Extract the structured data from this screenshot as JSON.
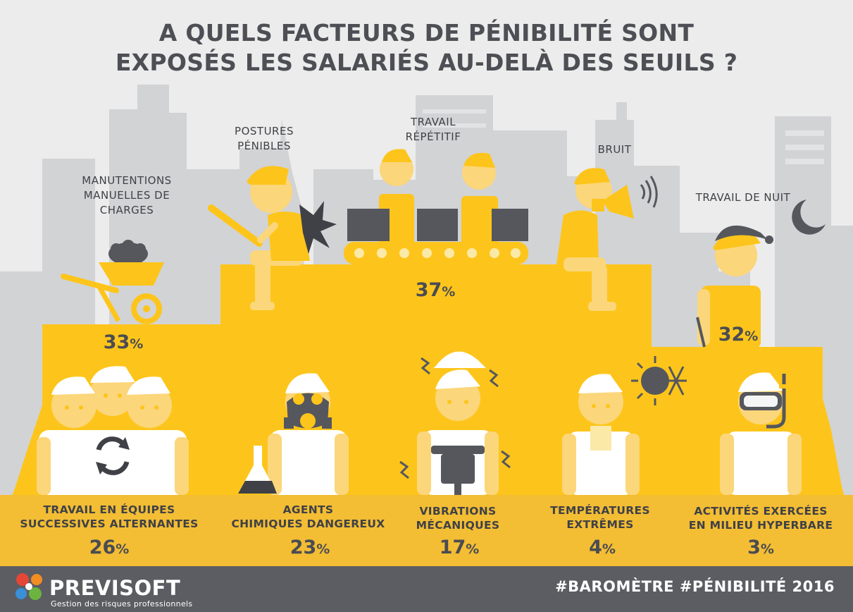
{
  "title_lines": [
    "A QUELS FACTEURS DE PÉNIBILITÉ SONT",
    "EXPOSÉS LES SALARIÉS AU-DELÀ DES SEUILS ?"
  ],
  "colors": {
    "yellow": "#fdc51b",
    "dark_yellow": "#f2b318",
    "band": "#f3bd34",
    "skin": "#fbd67a",
    "grey": "#55575d",
    "background": "#ececec",
    "buildings": "#d2d3d5",
    "footer": "#5b5d62"
  },
  "upper_factors": [
    {
      "lines": [
        "MANUTENTIONS",
        "MANUELLES DE",
        "CHARGES"
      ],
      "value_num": "33",
      "value_unit": "%",
      "icon": "wheelbarrow-icon"
    },
    {
      "lines": [
        "POSTURES",
        "PÉNIBLES"
      ],
      "icon": "sitting-worker-icon"
    },
    {
      "lines": [
        "TRAVAIL",
        "RÉPÉTITIF"
      ],
      "value_num": "37",
      "value_unit": "%",
      "icon": "assembly-line-icon"
    },
    {
      "lines": [
        "BRUIT"
      ],
      "icon": "megaphone-icon"
    },
    {
      "lines": [
        "TRAVAIL DE NUIT"
      ],
      "value_num": "32",
      "value_unit": "%",
      "icon": "moon-icon"
    }
  ],
  "lower_factors": [
    {
      "lines": [
        "TRAVAIL EN ÉQUIPES",
        "SUCCESSIVES ALTERNANTES"
      ],
      "value_num": "26",
      "value_unit": "%",
      "icon": "rotation-arrows-icon"
    },
    {
      "lines": [
        "AGENTS",
        "CHIMIQUES DANGEREUX"
      ],
      "value_num": "23",
      "value_unit": "%",
      "icon": "gas-mask-icon"
    },
    {
      "lines": [
        "VIBRATIONS",
        "MÉCANIQUES"
      ],
      "value_num": "17",
      "value_unit": "%",
      "icon": "jackhammer-icon"
    },
    {
      "lines": [
        "TEMPÉRATURES",
        "EXTRÊMES"
      ],
      "value_num": "4",
      "value_unit": "%",
      "icon": "sun-snowflake-icon"
    },
    {
      "lines": [
        "ACTIVITÉS  EXERCÉES",
        "EN MILIEU  HYPERBARE"
      ],
      "value_num": "3",
      "value_unit": "%",
      "icon": "diving-mask-icon"
    }
  ],
  "footer": {
    "brand": "PREVISOFT",
    "tagline": "Gestion des risques professionnels",
    "hashtag": "#BAROMÈTRE #PÉNIBILITÉ 2016"
  }
}
